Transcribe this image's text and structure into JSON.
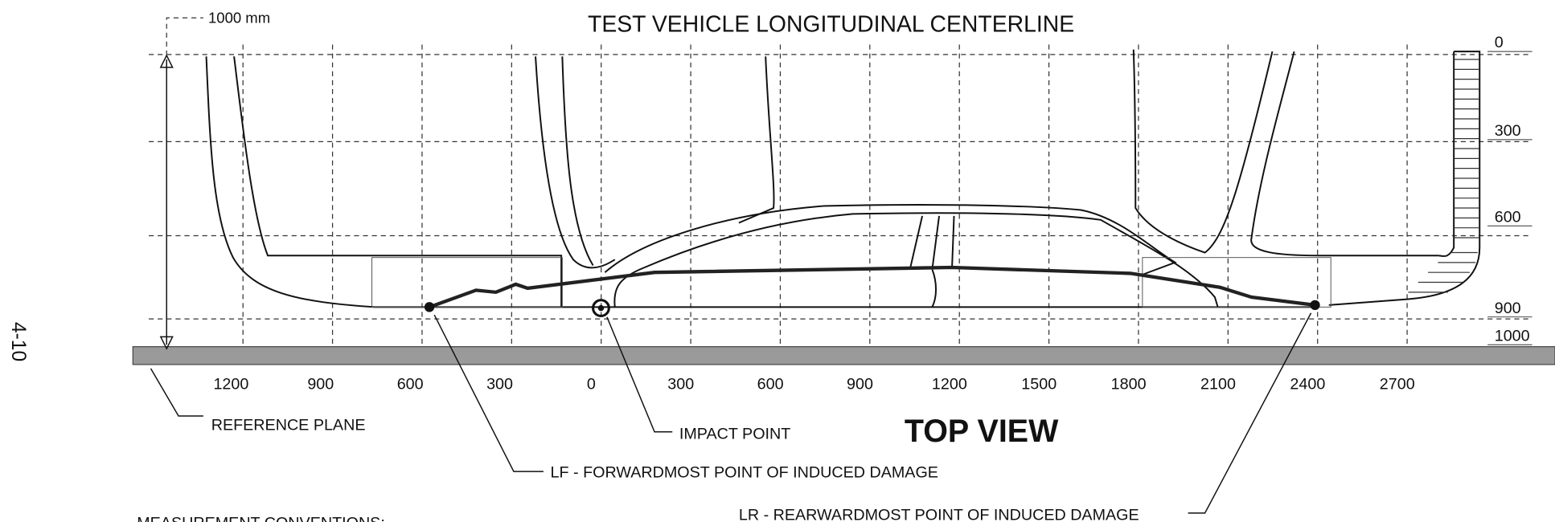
{
  "title": "TEST VEHICLE LONGITUDINAL CENTERLINE",
  "scale_label": "1000 mm",
  "x_labels": [
    "1200",
    "900",
    "600",
    "300",
    "0",
    "300",
    "600",
    "900",
    "1200",
    "1500",
    "1800",
    "2100",
    "2400",
    "2700"
  ],
  "y_labels": [
    "0",
    "300",
    "600",
    "900",
    "1000"
  ],
  "annotations": {
    "reference_plane": "REFERENCE PLANE",
    "impact_point": "IMPACT POINT",
    "lf": "LF - FORWARDMOST POINT OF INDUCED DAMAGE",
    "lr": "LR - REARWARDMOST POINT OF INDUCED DAMAGE"
  },
  "view_label": "TOP VIEW",
  "page_number": "4-10",
  "footer": "MEASUREMENT CONVENTIONS:"
}
